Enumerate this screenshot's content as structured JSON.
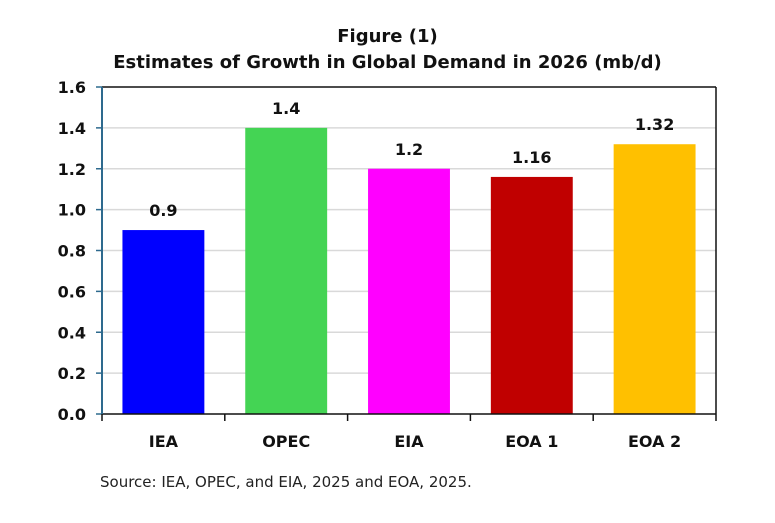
{
  "chart_data": {
    "type": "bar",
    "title": "Figure (1)",
    "subtitle": "Estimates of Growth in Global Demand in 2026 (mb/d)",
    "xlabel": "",
    "ylabel": "",
    "categories": [
      "IEA",
      "OPEC",
      "EIA",
      "EOA 1",
      "EOA 2"
    ],
    "values": [
      0.9,
      1.4,
      1.2,
      1.16,
      1.32
    ],
    "value_labels": [
      "0.9",
      "1.4",
      "1.2",
      "1.16",
      "1.32"
    ],
    "colors": [
      "#0000ff",
      "#44d454",
      "#ff00ff",
      "#c00000",
      "#ffc000"
    ],
    "ylim": [
      0,
      1.6
    ],
    "yticks": [
      "0.0",
      "0.2",
      "0.4",
      "0.6",
      "0.8",
      "1.0",
      "1.2",
      "1.4",
      "1.6"
    ],
    "ytick_values": [
      0,
      0.2,
      0.4,
      0.6,
      0.8,
      1.0,
      1.2,
      1.4,
      1.6
    ],
    "grid": true,
    "legend": "none"
  },
  "source": "Source: IEA, OPEC, and EIA, 2025 and EOA, 2025."
}
